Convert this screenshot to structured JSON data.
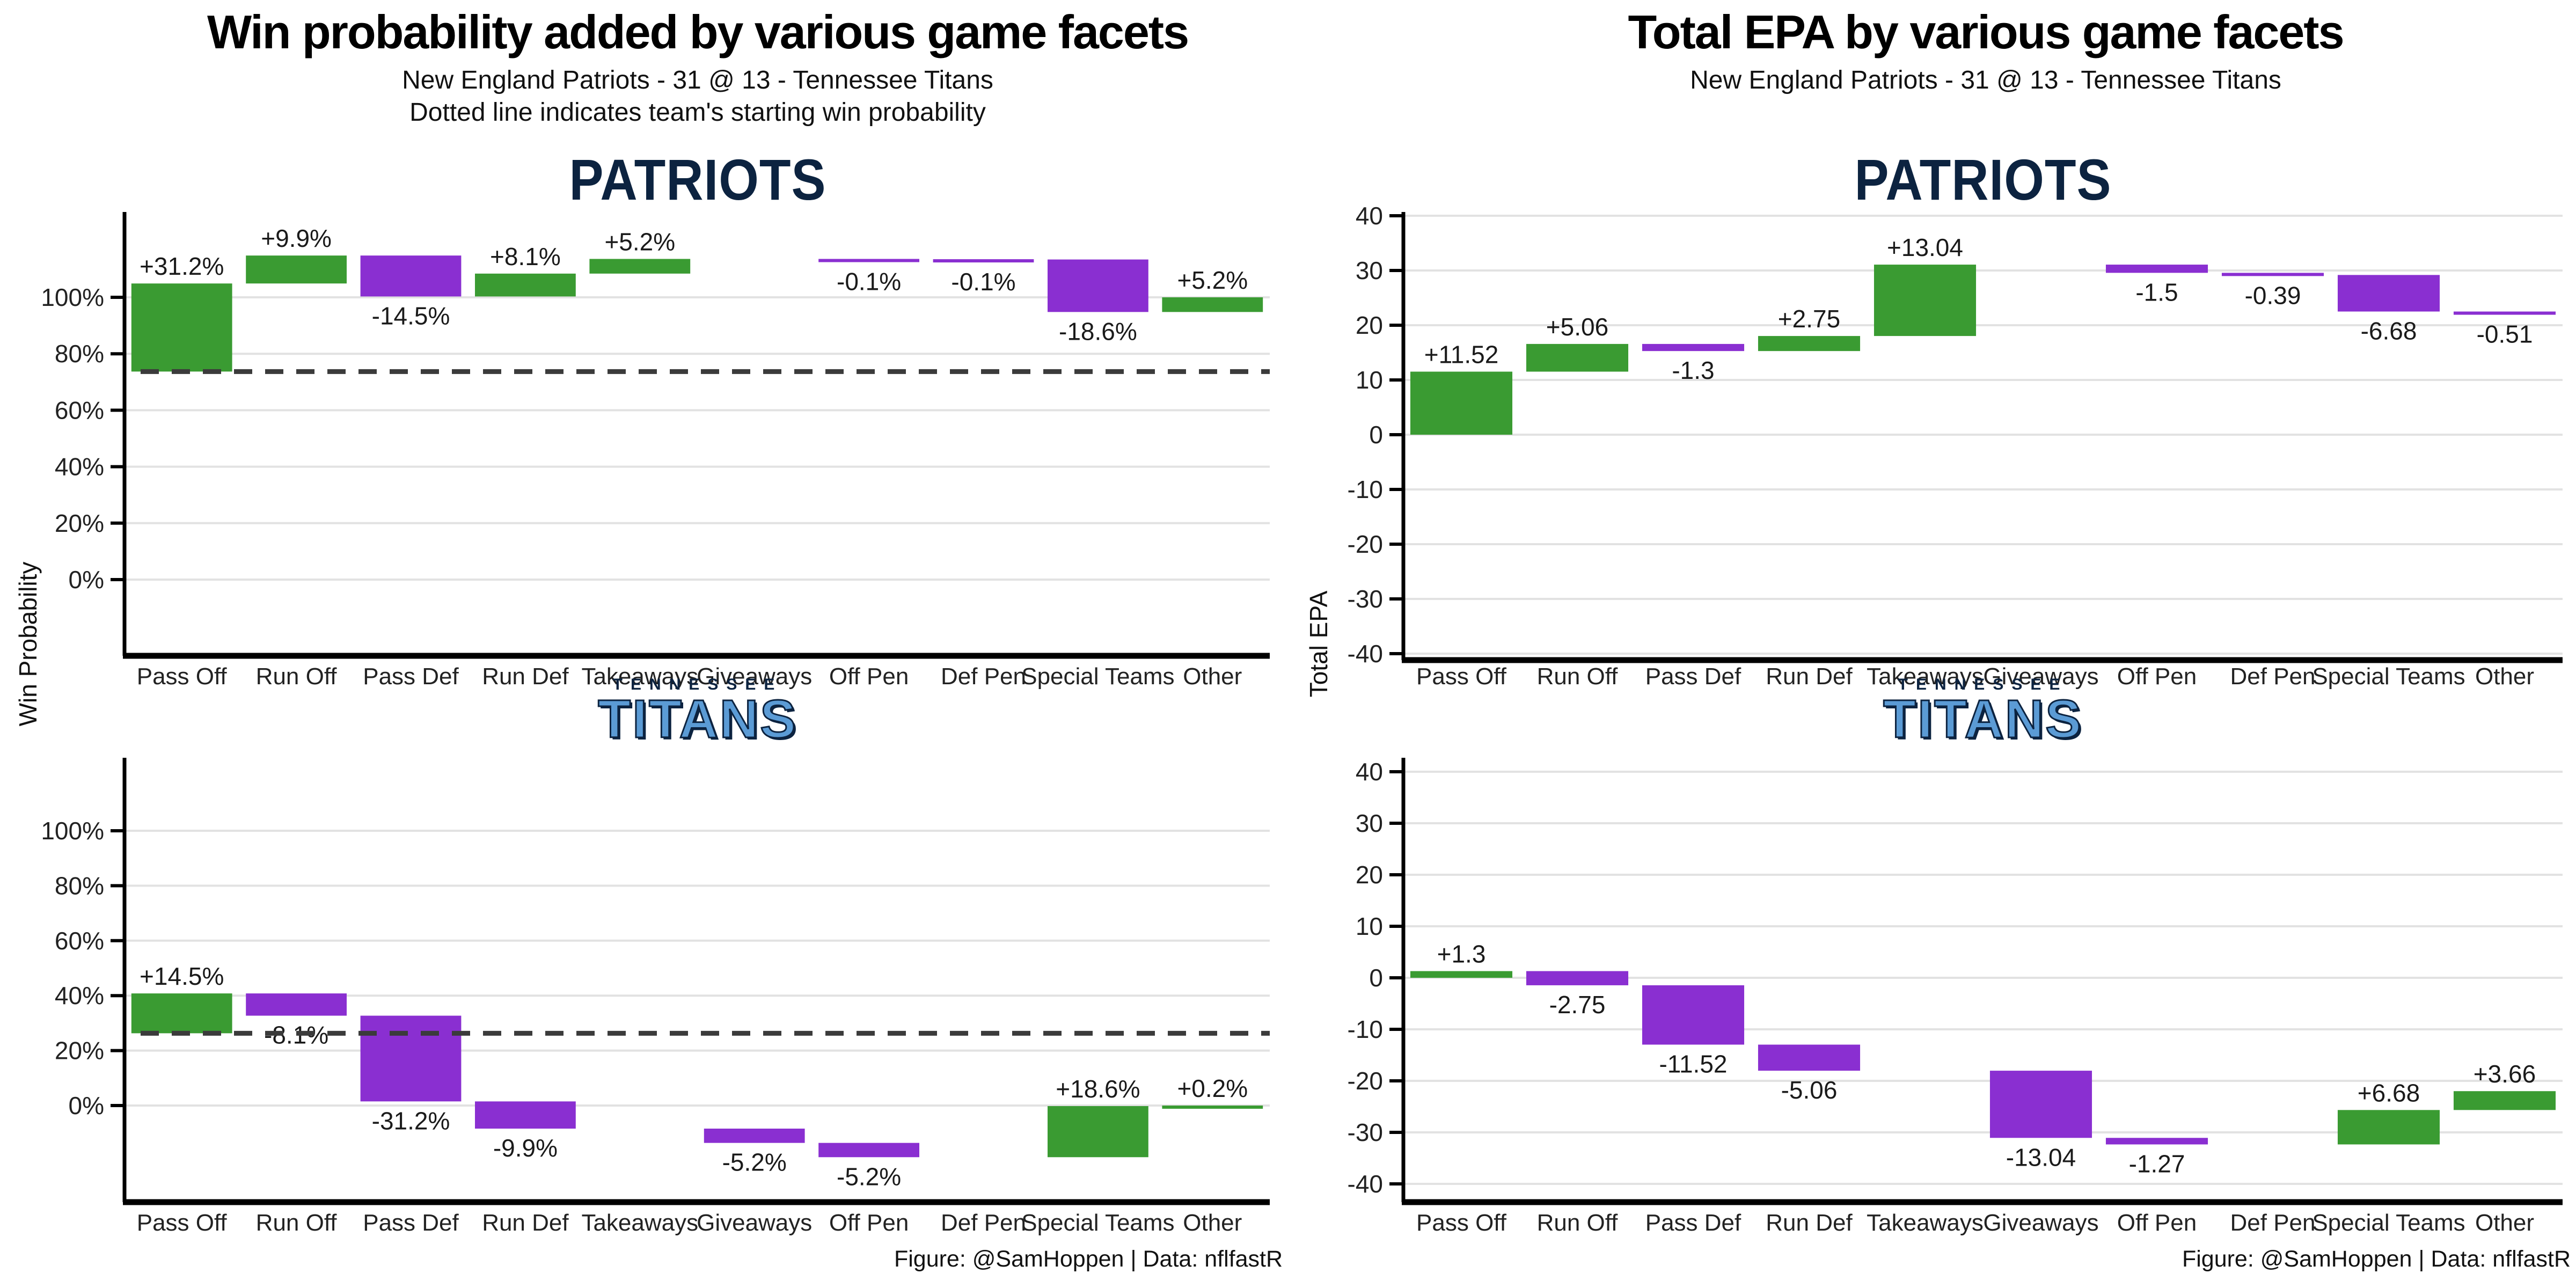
{
  "figure": {
    "left": {
      "title": "Win probability added by various game facets",
      "subtitle": "New England Patriots - 31 @ 13 - Tennessee Titans",
      "note": "Dotted line indicates team's starting win probability",
      "ylabel": "Win Probability",
      "footer": "Figure: @SamHoppen | Data: nflfastR"
    },
    "right": {
      "title": "Total EPA by various game facets",
      "subtitle": "New England Patriots - 31 @ 13 - Tennessee Titans",
      "ylabel": "Total EPA",
      "footer": "Figure: @SamHoppen | Data: nflfastR"
    }
  },
  "teams": {
    "patriots": {
      "wordmark": "PATRIOTS"
    },
    "titans": {
      "city": "TENNESSEE",
      "wordmark": "TITANS"
    }
  },
  "colors": {
    "positive_bar": "#3a9b32",
    "negative_bar": "#8a2fd1",
    "dashed_line": "#3b3b3b",
    "gridline": "#e2e2e2",
    "axis": "#000000",
    "bar_label": "#1a1a1a",
    "patriots_navy": "#0c2340",
    "titans_blue": "#5b9bd5"
  },
  "chart_data": {
    "type": "bar",
    "subtype": "waterfall",
    "categories": [
      "Pass Off",
      "Run Off",
      "Pass Def",
      "Run Def",
      "Takeaways",
      "Giveaways",
      "Off Pen",
      "Def Pen",
      "Special Teams",
      "Other"
    ],
    "charts": [
      {
        "id": "wpa-patriots",
        "team": "PATRIOTS",
        "unit": "%",
        "start": 73.7,
        "end": 100.0,
        "values": [
          31.2,
          9.9,
          -14.5,
          8.1,
          5.2,
          null,
          -0.1,
          -0.1,
          -18.6,
          5.2
        ],
        "labels": [
          "+31.2%",
          "+9.9%",
          "-14.5%",
          "+8.1%",
          "+5.2%",
          null,
          "-0.1%",
          "-0.1%",
          "-18.6%",
          "+5.2%"
        ],
        "yticks": [
          0,
          20,
          40,
          60,
          80,
          100
        ],
        "ytick_labels": [
          "0%",
          "20%",
          "40%",
          "60%",
          "80%",
          "100%"
        ],
        "ylim": [
          -28,
          131
        ],
        "dashed_line_y": 73.7,
        "grid": true
      },
      {
        "id": "wpa-titans",
        "team": "TITANS",
        "unit": "%",
        "start": 26.3,
        "end": 0.0,
        "values": [
          14.5,
          -8.1,
          -31.2,
          -9.9,
          null,
          -5.2,
          -5.2,
          null,
          18.6,
          0.2
        ],
        "labels": [
          "+14.5%",
          "-8.1%",
          "-31.2%",
          "-9.9%",
          null,
          "-5.2%",
          "-5.2%",
          null,
          "+18.6%",
          "+0.2%"
        ],
        "yticks": [
          0,
          20,
          40,
          60,
          80,
          100
        ],
        "ytick_labels": [
          "0%",
          "20%",
          "40%",
          "60%",
          "80%",
          "100%"
        ],
        "ylim": [
          -35,
          126
        ],
        "dashed_line_y": 26.3,
        "grid": true
      },
      {
        "id": "epa-patriots",
        "team": "PATRIOTS",
        "unit": "",
        "start": 0,
        "end": 21.99,
        "values": [
          11.52,
          5.06,
          -1.3,
          2.75,
          13.04,
          null,
          -1.5,
          -0.39,
          -6.68,
          -0.51
        ],
        "labels": [
          "+11.52",
          "+5.06",
          "-1.3",
          "+2.75",
          "+13.04",
          null,
          "-1.5",
          "-0.39",
          "-6.68",
          "-0.51"
        ],
        "yticks": [
          -40,
          -30,
          -20,
          -10,
          0,
          10,
          20,
          30,
          40
        ],
        "ytick_labels": [
          "-40",
          "-30",
          "-20",
          "-10",
          "0",
          "10",
          "20",
          "30",
          "40"
        ],
        "ylim": [
          -42,
          41
        ],
        "dashed_line_y": null,
        "grid": true
      },
      {
        "id": "epa-titans",
        "team": "TITANS",
        "unit": "",
        "start": 0,
        "end": -22.0,
        "values": [
          1.3,
          -2.75,
          -11.52,
          -5.06,
          null,
          -13.04,
          -1.27,
          null,
          6.68,
          3.66
        ],
        "labels": [
          "+1.3",
          "-2.75",
          "-11.52",
          "-5.06",
          null,
          "-13.04",
          "-1.27",
          null,
          "+6.68",
          "+3.66"
        ],
        "yticks": [
          -40,
          -30,
          -20,
          -10,
          0,
          10,
          20,
          30,
          40
        ],
        "ytick_labels": [
          "-40",
          "-30",
          "-20",
          "-10",
          "0",
          "10",
          "20",
          "30",
          "40"
        ],
        "ylim": [
          -43.5,
          42
        ],
        "dashed_line_y": null,
        "grid": true
      }
    ]
  }
}
